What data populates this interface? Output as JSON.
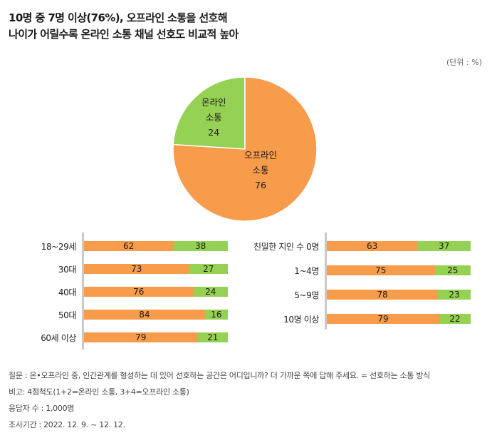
{
  "title_line1": "10명 중 7명 이상(76%), 오프라인 소통을 선호해",
  "title_line2": "나이가 어릴수록 온라인 소통 채널 선호도 비교적 높아",
  "unit": "(단위 : %)",
  "colors": {
    "offline": "#f79c4b",
    "online": "#95d153",
    "axis": "#c9c9c9"
  },
  "chart_data": [
    {
      "type": "pie",
      "slices": [
        {
          "label_line1": "온라인",
          "label_line2": "소통",
          "value": 24,
          "color": "#95d153"
        },
        {
          "label_line1": "오프라인",
          "label_line2": "소통",
          "value": 76,
          "color": "#f79c4b"
        }
      ]
    },
    {
      "type": "bar",
      "stacked": true,
      "orientation": "horizontal",
      "categories": [
        "18~29세",
        "30대",
        "40대",
        "50대",
        "60세 이상"
      ],
      "series": [
        {
          "name": "오프라인 소통",
          "values": [
            62,
            73,
            76,
            84,
            79
          ]
        },
        {
          "name": "온라인 소통",
          "values": [
            38,
            27,
            24,
            16,
            21
          ]
        }
      ]
    },
    {
      "type": "bar",
      "stacked": true,
      "orientation": "horizontal",
      "categories": [
        "친밀한 지인 수 0명",
        "1~4명",
        "5~9명",
        "10명 이상"
      ],
      "series": [
        {
          "name": "오프라인 소통",
          "values": [
            63,
            75,
            78,
            79
          ]
        },
        {
          "name": "온라인 소통",
          "values": [
            37,
            25,
            23,
            22
          ]
        }
      ]
    }
  ],
  "notes": [
    "질문 : 온•오프라인 중, 인간관계를 형성하는 데 있어 선호하는 공간은 어디입니까? 더 가까운 쪽에 답해 주세요. = 선호하는 소통 방식",
    "비고: 4점척도(1+2=온라인 소통, 3+4=오프라인 소통)",
    "응답자 수 : 1,000명",
    "조사기간 : 2022. 12. 9. ~ 12. 12."
  ]
}
